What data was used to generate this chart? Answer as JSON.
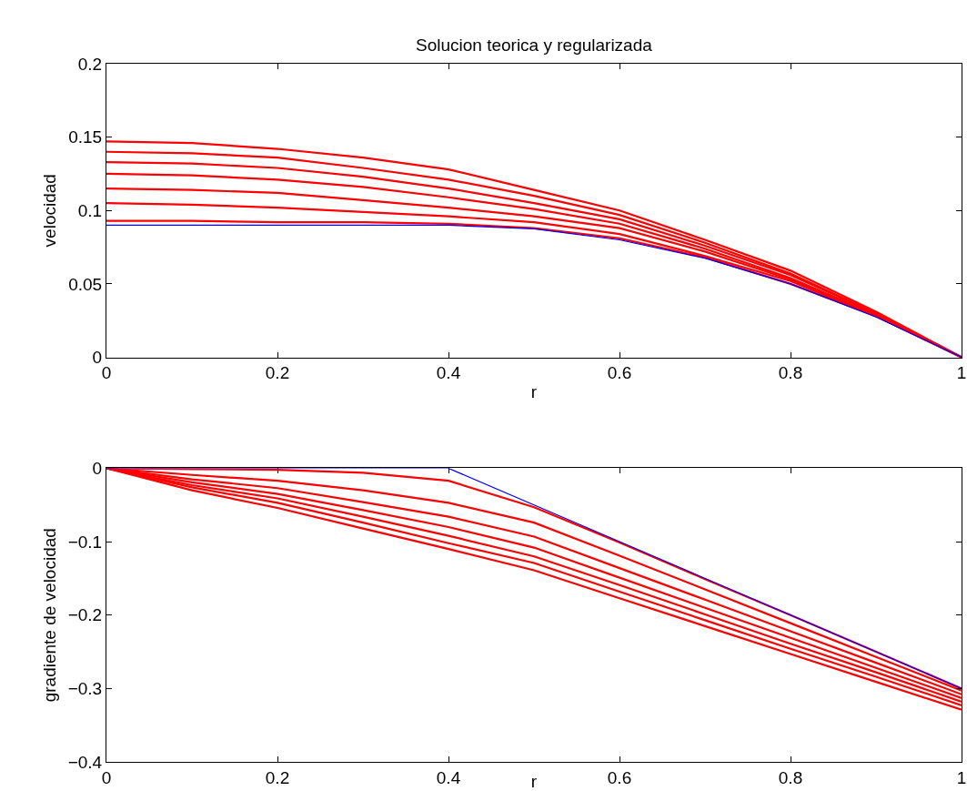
{
  "chart_data": [
    {
      "type": "line",
      "title": "Solucion teorica y regularizada",
      "xlabel": "r",
      "ylabel": "velocidad",
      "xlim": [
        0,
        1
      ],
      "ylim": [
        0,
        0.2
      ],
      "xticks": [
        0,
        0.2,
        0.4,
        0.6,
        0.8,
        1
      ],
      "yticks": [
        0,
        0.05,
        0.1,
        0.15,
        0.2
      ],
      "series": [
        {
          "color": "#ff0000",
          "x": [
            0,
            0.1,
            0.2,
            0.3,
            0.4,
            0.5,
            0.6,
            0.7,
            0.8,
            0.9,
            1
          ],
          "values": [
            0.147,
            0.146,
            0.142,
            0.136,
            0.128,
            0.114,
            0.1,
            0.08,
            0.059,
            0.031,
            0
          ]
        },
        {
          "color": "#ff0000",
          "x": [
            0,
            0.1,
            0.2,
            0.3,
            0.4,
            0.5,
            0.6,
            0.7,
            0.8,
            0.9,
            1
          ],
          "values": [
            0.14,
            0.139,
            0.136,
            0.129,
            0.121,
            0.11,
            0.097,
            0.078,
            0.057,
            0.03,
            0
          ]
        },
        {
          "color": "#ff0000",
          "x": [
            0,
            0.1,
            0.2,
            0.3,
            0.4,
            0.5,
            0.6,
            0.7,
            0.8,
            0.9,
            1
          ],
          "values": [
            0.133,
            0.132,
            0.129,
            0.123,
            0.115,
            0.105,
            0.094,
            0.076,
            0.056,
            0.03,
            0
          ]
        },
        {
          "color": "#ff0000",
          "x": [
            0,
            0.1,
            0.2,
            0.3,
            0.4,
            0.5,
            0.6,
            0.7,
            0.8,
            0.9,
            1
          ],
          "values": [
            0.125,
            0.124,
            0.121,
            0.116,
            0.109,
            0.101,
            0.091,
            0.074,
            0.054,
            0.029,
            0
          ]
        },
        {
          "color": "#ff0000",
          "x": [
            0,
            0.1,
            0.2,
            0.3,
            0.4,
            0.5,
            0.6,
            0.7,
            0.8,
            0.9,
            1
          ],
          "values": [
            0.115,
            0.114,
            0.112,
            0.107,
            0.102,
            0.096,
            0.088,
            0.072,
            0.053,
            0.029,
            0
          ]
        },
        {
          "color": "#ff0000",
          "x": [
            0,
            0.1,
            0.2,
            0.3,
            0.4,
            0.5,
            0.6,
            0.7,
            0.8,
            0.9,
            1
          ],
          "values": [
            0.105,
            0.104,
            0.102,
            0.099,
            0.096,
            0.092,
            0.084,
            0.069,
            0.052,
            0.028,
            0
          ]
        },
        {
          "color": "#ff0000",
          "x": [
            0,
            0.1,
            0.2,
            0.3,
            0.4,
            0.5,
            0.6,
            0.7,
            0.8,
            0.9,
            1
          ],
          "values": [
            0.093,
            0.093,
            0.092,
            0.092,
            0.091,
            0.088,
            0.081,
            0.068,
            0.05,
            0.028,
            0
          ]
        },
        {
          "color": "#0000ff",
          "x": [
            0,
            0.4,
            0.5,
            0.6,
            0.7,
            0.8,
            0.9,
            1
          ],
          "values": [
            0.09,
            0.09,
            0.0875,
            0.08,
            0.0675,
            0.05,
            0.0275,
            0
          ]
        }
      ]
    },
    {
      "type": "line",
      "xlabel": "r",
      "ylabel": "gradiente de velocidad",
      "xlim": [
        0,
        1
      ],
      "ylim": [
        -0.4,
        0
      ],
      "xticks": [
        0,
        0.2,
        0.4,
        0.6,
        0.8,
        1
      ],
      "yticks": [
        {
          "value": -0.4,
          "label": "−0.4"
        },
        {
          "value": -0.3,
          "label": "−0.3"
        },
        {
          "value": -0.2,
          "label": "−0.2"
        },
        {
          "value": -0.1,
          "label": "−0.1"
        },
        0
      ],
      "series": [
        {
          "color": "#ff0000",
          "x": [
            0,
            0.1,
            0.2,
            0.3,
            0.4,
            0.5,
            0.6,
            0.7,
            0.8,
            0.9,
            1
          ],
          "values": [
            0,
            -0.001,
            -0.002,
            -0.006,
            -0.017,
            -0.053,
            -0.101,
            -0.151,
            -0.2,
            -0.25,
            -0.3
          ]
        },
        {
          "color": "#ff0000",
          "x": [
            0,
            0.1,
            0.2,
            0.3,
            0.4,
            0.5,
            0.6,
            0.7,
            0.8,
            0.9,
            1
          ],
          "values": [
            0,
            -0.009,
            -0.017,
            -0.03,
            -0.047,
            -0.074,
            -0.119,
            -0.165,
            -0.211,
            -0.257,
            -0.303
          ]
        },
        {
          "color": "#ff0000",
          "x": [
            0,
            0.1,
            0.2,
            0.3,
            0.4,
            0.5,
            0.6,
            0.7,
            0.8,
            0.9,
            1
          ],
          "values": [
            0,
            -0.015,
            -0.027,
            -0.046,
            -0.066,
            -0.093,
            -0.136,
            -0.179,
            -0.222,
            -0.265,
            -0.308
          ]
        },
        {
          "color": "#ff0000",
          "x": [
            0,
            0.1,
            0.2,
            0.3,
            0.4,
            0.5,
            0.6,
            0.7,
            0.8,
            0.9,
            1
          ],
          "values": [
            0,
            -0.019,
            -0.035,
            -0.057,
            -0.08,
            -0.108,
            -0.149,
            -0.19,
            -0.231,
            -0.272,
            -0.313
          ]
        },
        {
          "color": "#ff0000",
          "x": [
            0,
            0.1,
            0.2,
            0.3,
            0.4,
            0.5,
            0.6,
            0.7,
            0.8,
            0.9,
            1
          ],
          "values": [
            0,
            -0.023,
            -0.041,
            -0.066,
            -0.092,
            -0.12,
            -0.159,
            -0.199,
            -0.239,
            -0.278,
            -0.318
          ]
        },
        {
          "color": "#ff0000",
          "x": [
            0,
            0.1,
            0.2,
            0.3,
            0.4,
            0.5,
            0.6,
            0.7,
            0.8,
            0.9,
            1
          ],
          "values": [
            0,
            -0.026,
            -0.047,
            -0.074,
            -0.102,
            -0.129,
            -0.168,
            -0.207,
            -0.246,
            -0.284,
            -0.323
          ]
        },
        {
          "color": "#ff0000",
          "x": [
            0,
            0.1,
            0.2,
            0.3,
            0.4,
            0.5,
            0.6,
            0.7,
            0.8,
            0.9,
            1
          ],
          "values": [
            0,
            -0.03,
            -0.054,
            -0.082,
            -0.11,
            -0.139,
            -0.177,
            -0.215,
            -0.253,
            -0.291,
            -0.329
          ]
        },
        {
          "color": "#0000ff",
          "x": [
            0,
            0.4,
            1
          ],
          "values": [
            0,
            0,
            -0.3
          ]
        }
      ]
    }
  ]
}
